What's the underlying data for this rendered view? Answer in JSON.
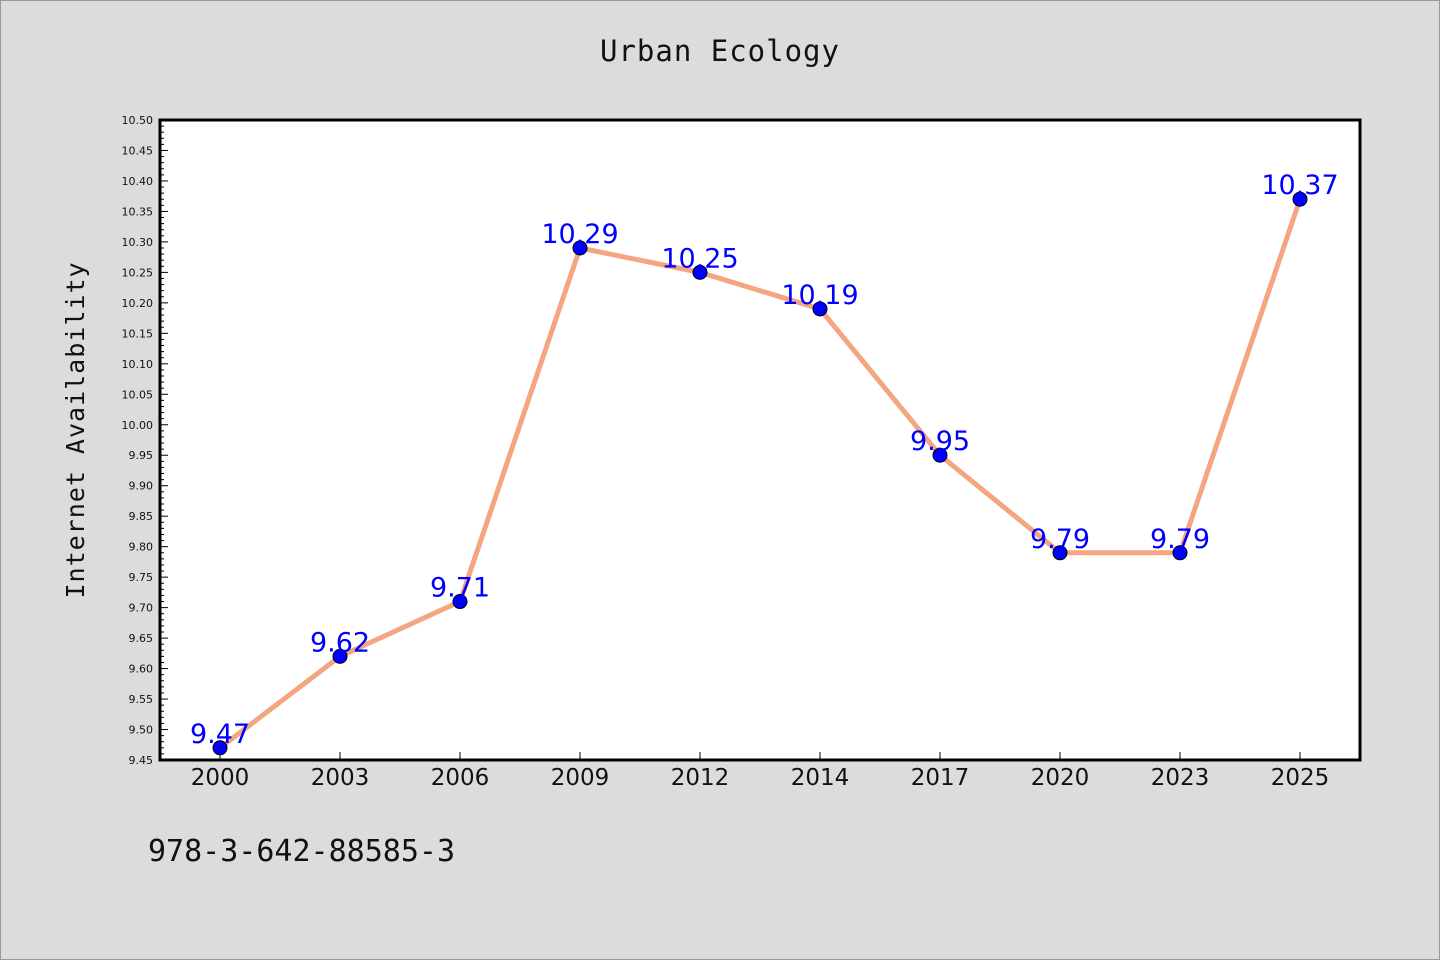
{
  "chart_data": {
    "type": "line",
    "title": "Urban Ecology",
    "xlabel": "",
    "ylabel": "Internet Availability",
    "categories": [
      "2000",
      "2003",
      "2006",
      "2009",
      "2012",
      "2014",
      "2017",
      "2020",
      "2023",
      "2025"
    ],
    "series": [
      {
        "values": [
          9.47,
          9.62,
          9.71,
          10.29,
          10.25,
          10.19,
          9.95,
          9.79,
          9.79,
          10.37
        ],
        "labels": [
          "9.47",
          "9.62",
          "9.71",
          "10.29",
          "10.25",
          "10.19",
          "9.95",
          "9.79",
          "9.79",
          "10.37"
        ]
      }
    ],
    "ylim": [
      9.45,
      10.5
    ],
    "y_ticks": [
      "9.45",
      "9.50",
      "9.55",
      "9.60",
      "9.65",
      "9.70",
      "9.75",
      "9.80",
      "9.85",
      "9.90",
      "9.95",
      "10.00",
      "10.05",
      "10.10",
      "10.15",
      "10.20",
      "10.25",
      "10.30",
      "10.35",
      "10.40",
      "10.45",
      "10.50"
    ],
    "grid": false,
    "legend": "none",
    "line_color": "#f4a582",
    "marker_color": "#0000ff",
    "label_color": "#0000ff"
  },
  "caption": "978-3-642-88585-3"
}
